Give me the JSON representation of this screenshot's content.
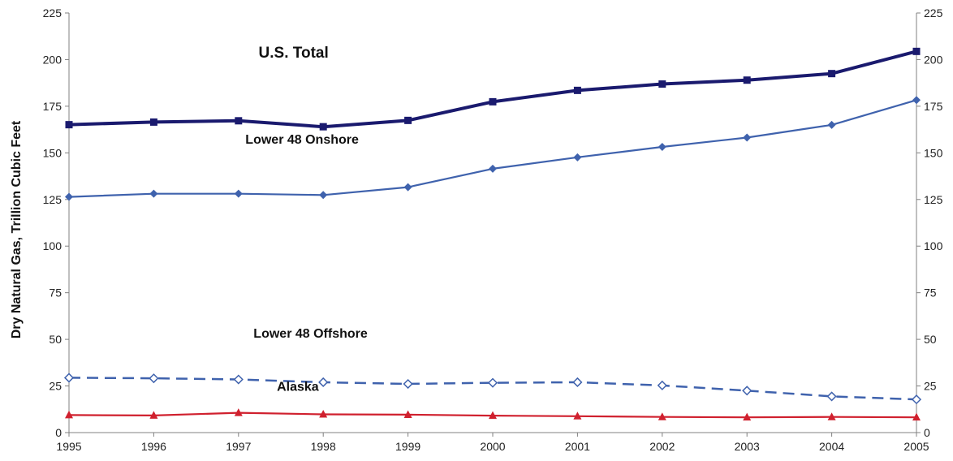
{
  "chart_data": {
    "type": "line",
    "title": "",
    "xlabel": "",
    "ylabel": "Dry Natural Gas, Trillion Cubic Feet",
    "x": [
      "1995",
      "1996",
      "1997",
      "1998",
      "1999",
      "2000",
      "2001",
      "2002",
      "2003",
      "2004",
      "2005"
    ],
    "ylim": [
      0,
      225
    ],
    "yticks": [
      "0",
      "25",
      "50",
      "75",
      "100",
      "125",
      "150",
      "175",
      "200",
      "225"
    ],
    "grid": false,
    "legend": "inline labels",
    "series": [
      {
        "name": "U.S. Total",
        "values": [
          165.1,
          166.5,
          167.2,
          164.0,
          167.4,
          177.4,
          183.5,
          186.9,
          189.0,
          192.5,
          204.4
        ],
        "color": "#1a1a6e",
        "marker": "square",
        "style": "solid"
      },
      {
        "name": "Lower 48 Onshore",
        "values": [
          126.4,
          128.1,
          128.1,
          127.4,
          131.6,
          141.5,
          147.6,
          153.2,
          158.2,
          165.0,
          178.3
        ],
        "color": "#3f62ad",
        "marker": "diamond",
        "style": "solid"
      },
      {
        "name": "Lower 48 Offshore",
        "values": [
          29.4,
          29.1,
          28.5,
          27.0,
          26.1,
          26.7,
          27.0,
          25.3,
          22.5,
          19.4,
          17.8
        ],
        "color": "#3f62ad",
        "marker": "diamond-open",
        "style": "dashed"
      },
      {
        "name": "Alaska",
        "values": [
          9.4,
          9.2,
          10.6,
          9.8,
          9.6,
          9.1,
          8.8,
          8.4,
          8.2,
          8.4,
          8.2
        ],
        "color": "#d0202e",
        "marker": "triangle",
        "style": "solid"
      }
    ]
  }
}
